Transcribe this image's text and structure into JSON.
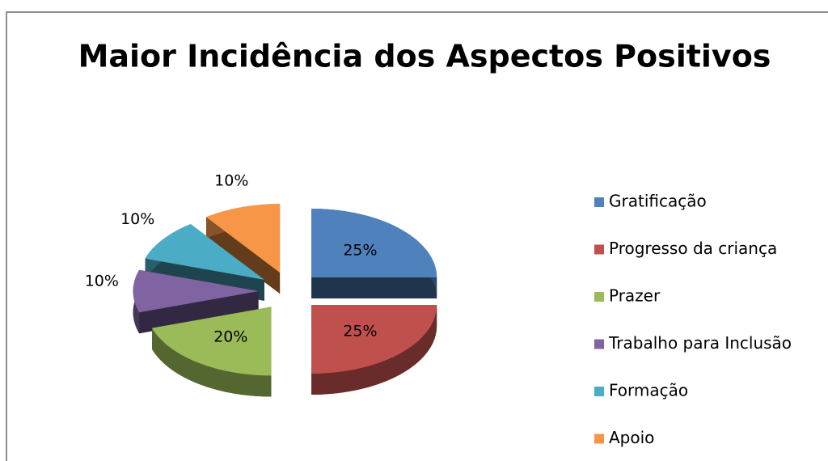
{
  "chart_data": {
    "type": "pie",
    "title": "Maior Incidência dos Aspectos Positivos",
    "categories": [
      "Gratificação",
      "Progresso da criança",
      "Prazer",
      "Trabalho para Inclusão",
      "Formação",
      "Apoio"
    ],
    "values": [
      25,
      25,
      20,
      10,
      10,
      10
    ],
    "value_labels": [
      "25%",
      "25%",
      "20%",
      "10%",
      "10%",
      "10%"
    ],
    "colors": [
      "#4f81bd",
      "#c0504d",
      "#9bbb59",
      "#8064a2",
      "#4bacc6",
      "#f79646"
    ],
    "legend": "right"
  }
}
